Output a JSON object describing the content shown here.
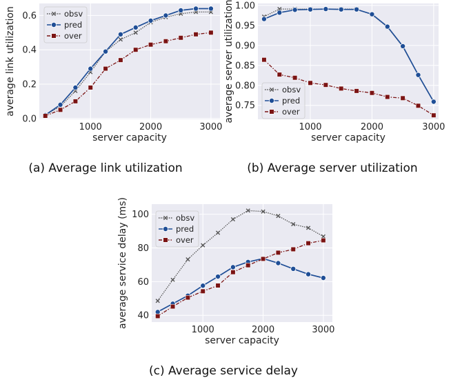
{
  "colors": {
    "obsv": "#555555",
    "pred": "#1f4e96",
    "over": "#7b1414",
    "plot_bg": "#eaeaf2",
    "grid": "#ffffff"
  },
  "chart_data": [
    {
      "type": "line",
      "caption": "(a) Average link utilization",
      "xlabel": "server capacity",
      "ylabel": "average link utilization",
      "xlim": [
        150,
        3150
      ],
      "ylim": [
        -0.005,
        0.67
      ],
      "xticks": [
        1000,
        2000,
        3000
      ],
      "xtick_labels": [
        "1000",
        "2000",
        "3000"
      ],
      "yticks": [
        0.0,
        0.2,
        0.4,
        0.6
      ],
      "ytick_labels": [
        "0.0",
        "0.2",
        "0.4",
        "0.6"
      ],
      "legend": "top-left",
      "grid": true,
      "x": [
        250,
        500,
        750,
        1000,
        1250,
        1500,
        1750,
        2000,
        2250,
        2500,
        2750,
        3000
      ],
      "series": [
        {
          "name": "obsv",
          "values": [
            0.02,
            0.07,
            0.16,
            0.27,
            0.39,
            0.46,
            0.5,
            0.56,
            0.59,
            0.61,
            0.62,
            0.62
          ]
        },
        {
          "name": "pred",
          "values": [
            0.02,
            0.08,
            0.18,
            0.29,
            0.39,
            0.49,
            0.53,
            0.57,
            0.6,
            0.63,
            0.64,
            0.64
          ]
        },
        {
          "name": "over",
          "values": [
            0.015,
            0.05,
            0.1,
            0.18,
            0.29,
            0.34,
            0.4,
            0.43,
            0.45,
            0.47,
            0.49,
            0.5
          ]
        }
      ]
    },
    {
      "type": "line",
      "caption": "(b) Average server utilization",
      "xlabel": "server capacity",
      "ylabel": "average server utilization",
      "xlim": [
        150,
        3080
      ],
      "ylim": [
        0.715,
        1.005
      ],
      "xticks": [
        1000,
        2000,
        3000
      ],
      "xtick_labels": [
        "1000",
        "2000",
        "3000"
      ],
      "yticks": [
        0.75,
        0.8,
        0.85,
        0.9,
        0.95,
        1.0
      ],
      "ytick_labels": [
        "0.75",
        "0.80",
        "0.85",
        "0.90",
        "0.95",
        "1.00"
      ],
      "legend": "bottom-left",
      "grid": true,
      "x": [
        250,
        500,
        750,
        1000,
        1250,
        1500,
        1750,
        2000,
        2250,
        2500,
        2750,
        3000
      ],
      "series": [
        {
          "name": "obsv",
          "values": [
            0.972,
            0.991,
            0.991,
            0.991,
            0.991,
            0.991,
            0.991,
            0.977,
            0.946,
            0.897,
            0.826,
            0.76
          ]
        },
        {
          "name": "pred",
          "values": [
            0.966,
            0.982,
            0.989,
            0.99,
            0.991,
            0.99,
            0.99,
            0.978,
            0.947,
            0.898,
            0.826,
            0.759
          ]
        },
        {
          "name": "over",
          "values": [
            0.864,
            0.827,
            0.819,
            0.806,
            0.801,
            0.792,
            0.786,
            0.781,
            0.771,
            0.768,
            0.749,
            0.725
          ]
        }
      ]
    },
    {
      "type": "line",
      "caption": "(c) Average service delay",
      "xlabel": "server capacity",
      "ylabel": "average service delay (ms)",
      "xlim": [
        150,
        3150
      ],
      "ylim": [
        36,
        106
      ],
      "xticks": [
        1000,
        2000,
        3000
      ],
      "xtick_labels": [
        "1000",
        "2000",
        "3000"
      ],
      "yticks": [
        40,
        60,
        80,
        100
      ],
      "ytick_labels": [
        "40",
        "60",
        "80",
        "100"
      ],
      "legend": "top-left",
      "grid": true,
      "x": [
        250,
        500,
        750,
        1000,
        1250,
        1500,
        1750,
        2000,
        2250,
        2500,
        2750,
        3000
      ],
      "series": [
        {
          "name": "obsv",
          "values": [
            48.6,
            61.1,
            73.2,
            81.6,
            89.0,
            97.0,
            102.2,
            101.6,
            99.0,
            94.1,
            91.9,
            86.8
          ]
        },
        {
          "name": "pred",
          "values": [
            42.0,
            46.9,
            51.7,
            57.6,
            63.0,
            68.6,
            71.7,
            73.7,
            71.0,
            67.6,
            64.4,
            62.2
          ]
        },
        {
          "name": "over",
          "values": [
            39.5,
            45.2,
            50.5,
            54.3,
            57.7,
            65.6,
            69.7,
            73.5,
            77.2,
            79.2,
            82.8,
            84.5
          ]
        }
      ]
    }
  ]
}
